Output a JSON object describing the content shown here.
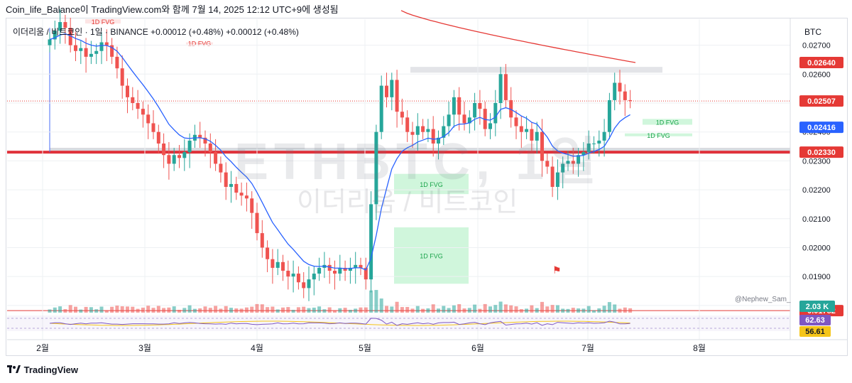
{
  "header": {
    "caption": "Coin_life_Balance이 TradingView.com와 함께 7월 14, 2025 12:12 UTC+9에 생성됨"
  },
  "legend": {
    "symbol": "이더리움 / 비트코인 · 1일 · BINANCE",
    "change_abs": "+0.00012 (+0.48%)",
    "change_abs2": "+0.00012 (+0.48%)"
  },
  "watermark": {
    "ticker": "ETHBTC, 1일",
    "name": "이더리움 / 비트코인"
  },
  "axis_unit": "BTC",
  "author": "@Nephew_Sam_",
  "footer": {
    "brand": "TradingView"
  },
  "colors": {
    "up": "#26a69a",
    "down": "#ef5350",
    "ma200": "#e53935",
    "ema": "#2962ff",
    "support_line": "#e0323b",
    "fvg_bull": "#c8f5d6",
    "fvg_bear": "#fde1e1",
    "rsi": "#7e57c2",
    "rsi_ma": "#f5c518"
  },
  "chart_data": {
    "type": "candlestick",
    "y_ticks": [
      0.027,
      0.026,
      0.025,
      0.024,
      0.023,
      0.022,
      0.021,
      0.02,
      0.019,
      0.018
    ],
    "y_tick_labels": [
      "0.02700",
      "0.02600",
      "0.02500",
      "0.02400",
      "0.02300",
      "0.02200",
      "0.02100",
      "0.02000",
      "0.01900",
      "0.01800"
    ],
    "ylim": [
      0.01775,
      0.0279
    ],
    "x_month_labels": [
      "2월",
      "3월",
      "4월",
      "5월",
      "6월",
      "7월",
      "8월"
    ],
    "price_labels": [
      {
        "value": "0.02640",
        "price": 0.0264,
        "color": "#e53935"
      },
      {
        "value": "0.02507",
        "price": 0.02507,
        "color": "#e53935"
      },
      {
        "value": "0.02416",
        "price": 0.02416,
        "color": "#2962ff"
      },
      {
        "value": "0.02330",
        "price": 0.0233,
        "color": "#e53935"
      },
      {
        "value": "0.01782",
        "price": 0.01782,
        "color": "#e53935"
      }
    ],
    "volume_label": "2.03 K",
    "rsi_labels": [
      {
        "value": "62.63",
        "color": "#7e57c2"
      },
      {
        "value": "56.61",
        "color": "#f5c518"
      }
    ],
    "fvg_zones": [
      {
        "label": "1D FVG",
        "kind": "bear",
        "top": 0.0279,
        "bottom": 0.02775
      },
      {
        "label": "1D FVG",
        "kind": "bear",
        "top": 0.0271,
        "bottom": 0.02705
      },
      {
        "label": "1D FVG",
        "kind": "bull",
        "top": 0.02255,
        "bottom": 0.02185
      },
      {
        "label": "1D FVG",
        "kind": "bull",
        "top": 0.0207,
        "bottom": 0.01875
      },
      {
        "label": "1D FVG",
        "kind": "bull",
        "top": 0.02445,
        "bottom": 0.02425
      },
      {
        "label": "1D FVG",
        "kind": "bull",
        "top": 0.02395,
        "bottom": 0.02385
      }
    ],
    "resistance_zone": {
      "top": 0.02625,
      "bottom": 0.02605
    },
    "support_zone": {
      "top": 0.02345,
      "bottom": 0.02325
    },
    "closes": [
      0.0272,
      0.0275,
      0.0278,
      0.0276,
      0.027,
      0.0268,
      0.0269,
      0.0266,
      0.0267,
      0.0268,
      0.0271,
      0.027,
      0.0266,
      0.0262,
      0.0256,
      0.0252,
      0.025,
      0.0248,
      0.0246,
      0.0243,
      0.024,
      0.0236,
      0.0232,
      0.0229,
      0.0232,
      0.0231,
      0.0233,
      0.0237,
      0.0239,
      0.0238,
      0.0236,
      0.0233,
      0.0229,
      0.0226,
      0.0221,
      0.0222,
      0.0219,
      0.0218,
      0.0217,
      0.0212,
      0.0205,
      0.02,
      0.0196,
      0.0193,
      0.0195,
      0.0192,
      0.019,
      0.0191,
      0.0188,
      0.0186,
      0.0189,
      0.0191,
      0.0193,
      0.0194,
      0.0192,
      0.0191,
      0.0193,
      0.0192,
      0.0193,
      0.0194,
      0.0193,
      0.0189,
      0.0215,
      0.024,
      0.0256,
      0.0252,
      0.0258,
      0.0247,
      0.0245,
      0.024,
      0.0239,
      0.0242,
      0.024,
      0.0241,
      0.0236,
      0.0238,
      0.0242,
      0.0246,
      0.0252,
      0.0246,
      0.0243,
      0.0245,
      0.025,
      0.0248,
      0.0241,
      0.0243,
      0.025,
      0.026,
      0.0251,
      0.0245,
      0.0242,
      0.024,
      0.0241,
      0.0237,
      0.024,
      0.023,
      0.0228,
      0.0221,
      0.0226,
      0.0229,
      0.023,
      0.0229,
      0.0232,
      0.0233,
      0.0236,
      0.0236,
      0.0237,
      0.024,
      0.0251,
      0.0257,
      0.0254,
      0.0251,
      0.02507
    ]
  },
  "chart_title": ""
}
